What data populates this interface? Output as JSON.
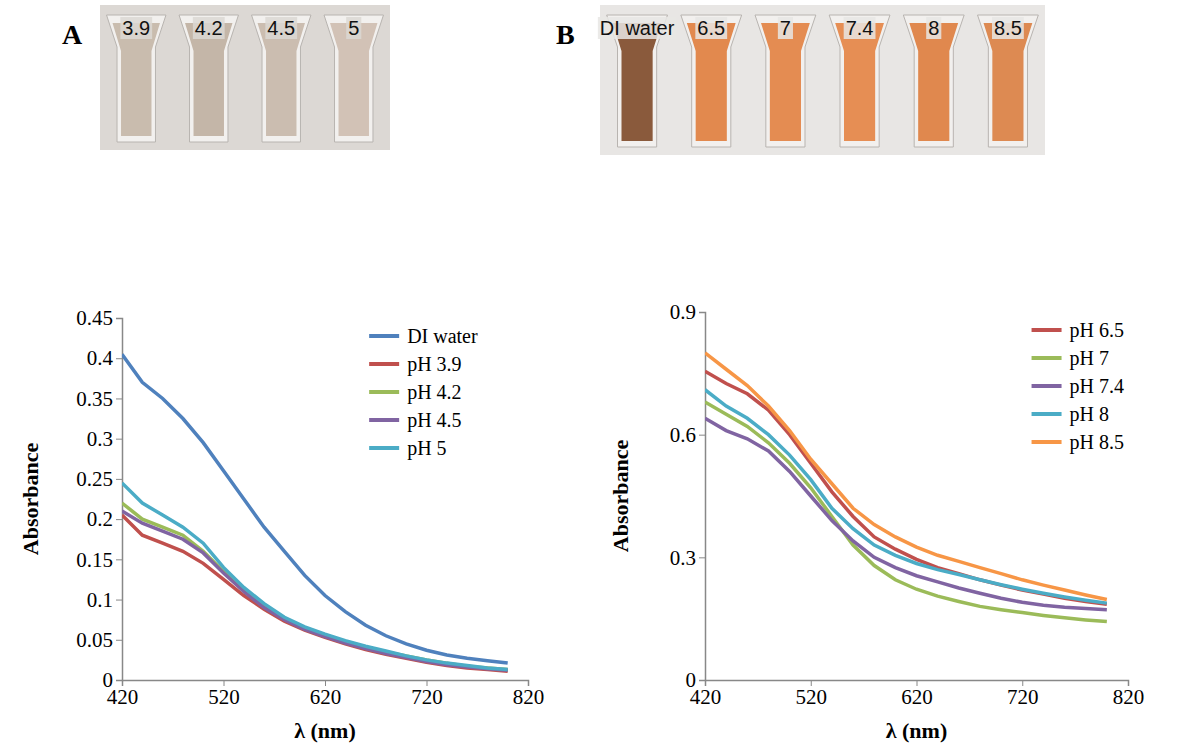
{
  "photos": [
    {
      "letter": "A",
      "labels": [
        "3.9",
        "4.2",
        "4.5",
        "5"
      ],
      "colors": [
        "#c9bcae",
        "#c4b6a8",
        "#cbbdb0",
        "#d2c2b6"
      ]
    },
    {
      "letter": "B",
      "labels": [
        "DI water",
        "6.5",
        "7",
        "7.4",
        "8",
        "8.5"
      ],
      "colors": [
        "#8a5a3c",
        "#e2894e",
        "#e48c52",
        "#e68e54",
        "#e0884e",
        "#dd8a52"
      ]
    }
  ],
  "chart_data": [
    {
      "type": "line",
      "xlabel": "λ (nm)",
      "ylabel": "Absorbance",
      "x": [
        420,
        440,
        460,
        480,
        500,
        520,
        540,
        560,
        580,
        600,
        620,
        640,
        660,
        680,
        700,
        720,
        740,
        760,
        780,
        800
      ],
      "xlim": [
        420,
        820
      ],
      "xticks": [
        420,
        520,
        620,
        720,
        820
      ],
      "ylim": [
        0,
        0.45
      ],
      "yticks": [
        0,
        0.05,
        0.1,
        0.15,
        0.2,
        0.25,
        0.3,
        0.35,
        0.4,
        0.45
      ],
      "legend": "upper right",
      "series": [
        {
          "name": "DI water",
          "color": "#4f81bd",
          "values": [
            0.405,
            0.37,
            0.35,
            0.325,
            0.295,
            0.26,
            0.225,
            0.19,
            0.16,
            0.13,
            0.105,
            0.085,
            0.068,
            0.055,
            0.045,
            0.037,
            0.031,
            0.027,
            0.024,
            0.021
          ]
        },
        {
          "name": "pH 3.9",
          "color": "#c0504d",
          "values": [
            0.205,
            0.18,
            0.17,
            0.16,
            0.145,
            0.125,
            0.105,
            0.088,
            0.073,
            0.062,
            0.053,
            0.045,
            0.038,
            0.032,
            0.027,
            0.022,
            0.018,
            0.015,
            0.013,
            0.011
          ]
        },
        {
          "name": "pH 4.2",
          "color": "#9bbb59",
          "values": [
            0.22,
            0.2,
            0.19,
            0.18,
            0.16,
            0.135,
            0.112,
            0.093,
            0.077,
            0.065,
            0.056,
            0.048,
            0.041,
            0.035,
            0.03,
            0.025,
            0.021,
            0.017,
            0.015,
            0.013
          ]
        },
        {
          "name": "pH 4.5",
          "color": "#8064a2",
          "values": [
            0.21,
            0.195,
            0.185,
            0.175,
            0.158,
            0.133,
            0.11,
            0.09,
            0.075,
            0.063,
            0.054,
            0.046,
            0.039,
            0.033,
            0.028,
            0.023,
            0.019,
            0.016,
            0.014,
            0.012
          ]
        },
        {
          "name": "pH 5",
          "color": "#4bacc6",
          "values": [
            0.245,
            0.22,
            0.205,
            0.19,
            0.17,
            0.14,
            0.115,
            0.095,
            0.078,
            0.066,
            0.057,
            0.049,
            0.042,
            0.036,
            0.03,
            0.025,
            0.021,
            0.018,
            0.015,
            0.013
          ]
        }
      ]
    },
    {
      "type": "line",
      "xlabel": "λ (nm)",
      "ylabel": "Absorbance",
      "x": [
        420,
        440,
        460,
        480,
        500,
        520,
        540,
        560,
        580,
        600,
        620,
        640,
        660,
        680,
        700,
        720,
        740,
        760,
        780,
        800
      ],
      "xlim": [
        420,
        820
      ],
      "xticks": [
        420,
        520,
        620,
        720,
        820
      ],
      "ylim": [
        0,
        0.9
      ],
      "yticks": [
        0,
        0.3,
        0.6,
        0.9
      ],
      "legend": "upper right",
      "series": [
        {
          "name": "pH 6.5",
          "color": "#c0504d",
          "values": [
            0.755,
            0.725,
            0.7,
            0.66,
            0.6,
            0.53,
            0.46,
            0.4,
            0.35,
            0.32,
            0.295,
            0.275,
            0.26,
            0.245,
            0.232,
            0.22,
            0.21,
            0.2,
            0.192,
            0.185
          ]
        },
        {
          "name": "pH 7",
          "color": "#9bbb59",
          "values": [
            0.68,
            0.65,
            0.62,
            0.58,
            0.53,
            0.47,
            0.4,
            0.33,
            0.28,
            0.245,
            0.222,
            0.205,
            0.192,
            0.18,
            0.172,
            0.165,
            0.158,
            0.152,
            0.147,
            0.143
          ]
        },
        {
          "name": "pH 7.4",
          "color": "#8064a2",
          "values": [
            0.64,
            0.61,
            0.59,
            0.56,
            0.51,
            0.45,
            0.39,
            0.34,
            0.3,
            0.275,
            0.255,
            0.24,
            0.225,
            0.212,
            0.2,
            0.19,
            0.183,
            0.178,
            0.175,
            0.172
          ]
        },
        {
          "name": "pH 8",
          "color": "#4bacc6",
          "values": [
            0.71,
            0.67,
            0.64,
            0.6,
            0.55,
            0.49,
            0.42,
            0.37,
            0.33,
            0.305,
            0.285,
            0.27,
            0.258,
            0.245,
            0.233,
            0.222,
            0.212,
            0.203,
            0.195,
            0.188
          ]
        },
        {
          "name": "pH 8.5",
          "color": "#f79646",
          "values": [
            0.8,
            0.76,
            0.72,
            0.67,
            0.61,
            0.54,
            0.48,
            0.42,
            0.38,
            0.35,
            0.325,
            0.305,
            0.29,
            0.275,
            0.26,
            0.245,
            0.232,
            0.22,
            0.208,
            0.197
          ]
        }
      ]
    }
  ]
}
